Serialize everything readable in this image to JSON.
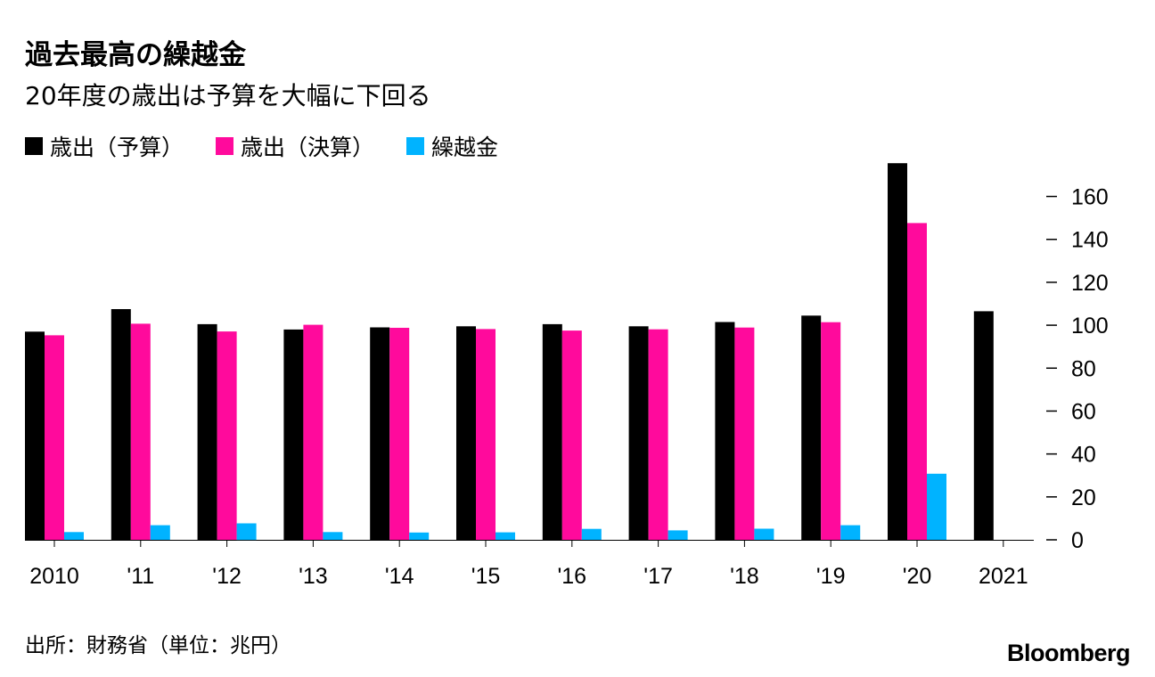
{
  "title": "過去最高の繰越金",
  "subtitle": "20年度の歳出は予算を大幅に下回る",
  "source": "出所：財務省（単位：兆円）",
  "logo": "Bloomberg",
  "chart_data": {
    "type": "bar",
    "categories": [
      "2010",
      "'11",
      "'12",
      "'13",
      "'14",
      "'15",
      "'16",
      "'17",
      "'18",
      "'19",
      "'20",
      "2021"
    ],
    "series": [
      {
        "name": "歳出（予算）",
        "color": "#000000",
        "values": [
          97,
          107.5,
          100.5,
          98,
          99,
          99.5,
          100.5,
          99.5,
          101.5,
          104.5,
          175.5,
          106.5
        ]
      },
      {
        "name": "歳出（決算）",
        "color": "#ff0a9c",
        "values": [
          95.3,
          100.7,
          97.1,
          100.2,
          98.8,
          98.2,
          97.5,
          98.1,
          98.9,
          101.4,
          147.6,
          null
        ]
      },
      {
        "name": "繰越金",
        "color": "#00b3ff",
        "values": [
          3.6,
          6.8,
          7.7,
          3.6,
          3.4,
          3.5,
          5.1,
          4.4,
          5.2,
          6.8,
          30.8,
          null
        ]
      }
    ],
    "y_ticks": [
      0,
      20,
      40,
      60,
      80,
      100,
      120,
      140,
      160
    ],
    "ylim": [
      0,
      176
    ],
    "y_axis_side": "right",
    "legend_position": "top-left",
    "grid": false
  }
}
